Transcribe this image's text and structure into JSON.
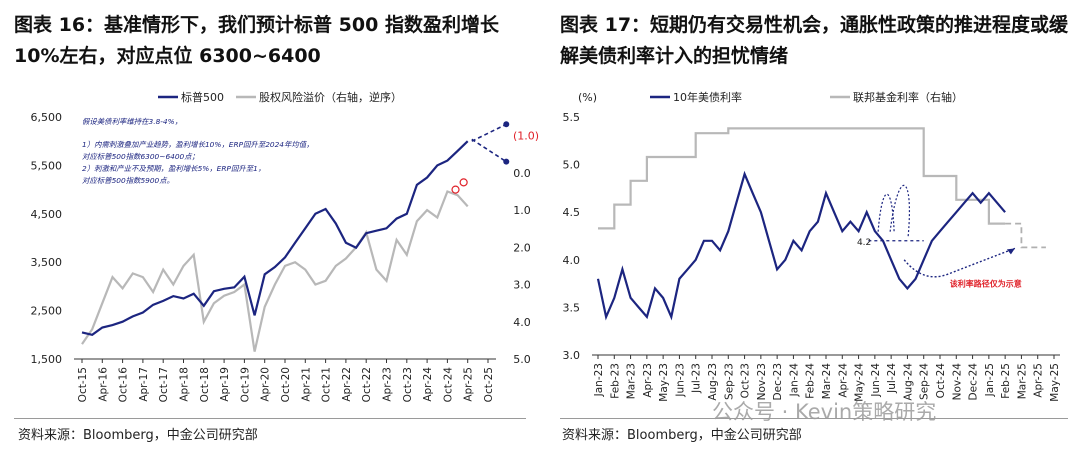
{
  "figures": [
    {
      "title": "图表 16：基准情形下，我们预计标普 500 指数盈利增长 10%左右，对应点位 6300~6400",
      "source": "资料来源：Bloomberg，中金公司研究部"
    },
    {
      "title": "图表 17：短期仍有交易性机会，通胀性政策的推进程度或缓解美债利率计入的担忧情绪",
      "source": "资料来源：Bloomberg，中金公司研究部"
    }
  ],
  "watermark": "公众号 · Kevin策略研究",
  "colors": {
    "navy": "#1c2580",
    "gray": "#b8b8b8",
    "red": "#e0222a",
    "dashgray": "#b0b0b0"
  },
  "chart_data": [
    {
      "type": "line",
      "title": "",
      "legend": [
        "标普500",
        "股权风险溢价（右轴，逆序）"
      ],
      "legend_placement": "top",
      "x_ticks": [
        "Oct-15",
        "Apr-16",
        "Oct-16",
        "Apr-17",
        "Oct-17",
        "Apr-18",
        "Oct-18",
        "Apr-19",
        "Oct-19",
        "Apr-20",
        "Oct-20",
        "Apr-21",
        "Oct-21",
        "Apr-22",
        "Oct-22",
        "Apr-23",
        "Oct-23",
        "Apr-24",
        "Oct-24",
        "Apr-25",
        "Oct-25"
      ],
      "y_left_ticks": [
        "6,500",
        "5,500",
        "4,500",
        "3,500",
        "2,500",
        "1,500"
      ],
      "y_left_range": [
        1500,
        6500
      ],
      "y_right_ticks": [
        "0.0",
        "1.0",
        "2.0",
        "3.0",
        "4.0",
        "5.0"
      ],
      "y_right_range": [
        -1.5,
        5.0
      ],
      "y_right_reversed": true,
      "annotation": "假设美债利率维持在3.8-4%，\n1）内需刺激叠加产业趋势，盈利增长10%，ERP回升至2024年均值，\n对应标普500指数6300~6400点；\n2）刺激和产业不及预期，盈利增长5%，ERP回升至1，\n对应标普500指数5900点。",
      "right_axis_label_top": "(1.0)",
      "series": [
        {
          "name": "标普500",
          "axis": "left",
          "x": [
            0,
            0.5,
            1,
            1.5,
            2,
            2.5,
            3,
            3.5,
            4,
            4.5,
            5,
            5.5,
            6,
            6.5,
            7,
            7.5,
            8,
            8.5,
            9,
            9.5,
            10,
            10.5,
            11,
            11.5,
            12,
            12.5,
            13,
            13.5,
            14,
            14.5,
            15,
            15.5,
            16,
            16.5,
            17,
            17.5,
            18,
            18.5,
            19
          ],
          "values": [
            2050,
            2000,
            2150,
            2200,
            2270,
            2380,
            2460,
            2620,
            2700,
            2800,
            2750,
            2850,
            2600,
            2900,
            2950,
            2980,
            3200,
            2400,
            3250,
            3400,
            3600,
            3900,
            4200,
            4500,
            4600,
            4300,
            3900,
            3800,
            4100,
            4150,
            4200,
            4400,
            4500,
            5100,
            5250,
            5500,
            5600,
            5800,
            6000
          ]
        },
        {
          "name": "股权风险溢价（右轴，逆序）",
          "axis": "right",
          "x": [
            0,
            0.5,
            1,
            1.5,
            2,
            2.5,
            3,
            3.5,
            4,
            4.5,
            5,
            5.5,
            6,
            6.5,
            7,
            7.5,
            8,
            8.5,
            9,
            9.5,
            10,
            10.5,
            11,
            11.5,
            12,
            12.5,
            13,
            13.5,
            14,
            14.5,
            15,
            15.5,
            16,
            16.5,
            17,
            17.5,
            18,
            18.5,
            19
          ],
          "values": [
            4.6,
            4.2,
            3.5,
            2.8,
            3.1,
            2.7,
            2.8,
            3.2,
            2.6,
            3.0,
            2.5,
            2.2,
            4.0,
            3.5,
            3.3,
            3.2,
            3.0,
            4.8,
            3.6,
            3.0,
            2.5,
            2.4,
            2.6,
            3.0,
            2.9,
            2.5,
            2.3,
            2.0,
            1.6,
            2.6,
            2.9,
            1.8,
            2.2,
            1.3,
            1.0,
            1.2,
            0.5,
            0.6,
            0.9
          ]
        }
      ],
      "projections": [
        {
          "name": "base",
          "x": [
            19.2,
            20.9
          ],
          "values": [
            6000,
            6350
          ]
        },
        {
          "name": "erp",
          "x": [
            19.2,
            20.9
          ],
          "values_right": [
            -0.9,
            -0.3
          ]
        }
      ],
      "markers": [
        {
          "x": 18.4,
          "value_left": 5000
        },
        {
          "x": 18.8,
          "value_left": 5150
        }
      ]
    },
    {
      "type": "line",
      "title": "",
      "unit_label": "(%)",
      "legend": [
        "10年美债利率",
        "联邦基金利率（右轴）"
      ],
      "legend_placement": "top",
      "x_ticks": [
        "Jan-23",
        "Feb-23",
        "Mar-23",
        "Apr-23",
        "May-23",
        "Jun-23",
        "Jul-23",
        "Aug-23",
        "Sep-23",
        "Oct-23",
        "Nov-23",
        "Dec-23",
        "Jan-24",
        "Feb-24",
        "Mar-24",
        "Apr-24",
        "May-24",
        "Jun-24",
        "Jul-24",
        "Aug-24",
        "Sep-24",
        "Oct-24",
        "Nov-24",
        "Dec-24",
        "Jan-25",
        "Feb-25",
        "Mar-25",
        "Apr-25",
        "May-25"
      ],
      "y_ticks": [
        "5.5",
        "5.0",
        "4.5",
        "4.0",
        "3.5",
        "3.0"
      ],
      "y_range": [
        3.0,
        5.5
      ],
      "series": [
        {
          "name": "10年美债利率",
          "x": [
            0,
            0.5,
            1,
            1.5,
            2,
            2.5,
            3,
            3.5,
            4,
            4.5,
            5,
            5.5,
            6,
            6.5,
            7,
            7.5,
            8,
            8.5,
            9,
            9.5,
            10,
            10.5,
            11,
            11.5,
            12,
            12.5,
            13,
            13.5,
            14,
            14.5,
            15,
            15.5,
            16,
            16.5,
            17,
            17.5,
            18,
            18.5,
            19,
            19.5,
            20,
            20.5,
            21,
            21.5,
            22,
            22.5,
            23,
            23.5,
            24,
            24.5,
            25
          ],
          "values": [
            3.8,
            3.4,
            3.6,
            3.9,
            3.6,
            3.5,
            3.4,
            3.7,
            3.6,
            3.4,
            3.8,
            3.9,
            4.0,
            4.2,
            4.2,
            4.1,
            4.3,
            4.6,
            4.9,
            4.7,
            4.5,
            4.2,
            3.9,
            4.0,
            4.2,
            4.1,
            4.3,
            4.4,
            4.7,
            4.5,
            4.3,
            4.4,
            4.3,
            4.5,
            4.3,
            4.2,
            4.0,
            3.8,
            3.7,
            3.8,
            4.0,
            4.2,
            4.3,
            4.4,
            4.5,
            4.6,
            4.7,
            4.6,
            4.7,
            4.6,
            4.5
          ]
        },
        {
          "name": "联邦基金利率（右轴）",
          "x": [
            0,
            1,
            1,
            2,
            2,
            3,
            3,
            4.5,
            4.5,
            6,
            6,
            7,
            7,
            8,
            8,
            20,
            20,
            22,
            22,
            24,
            24,
            25
          ],
          "values": [
            4.33,
            4.33,
            4.58,
            4.58,
            4.83,
            4.83,
            5.08,
            5.08,
            5.08,
            5.08,
            5.33,
            5.33,
            5.33,
            5.33,
            5.38,
            5.38,
            4.88,
            4.88,
            4.63,
            4.63,
            4.38,
            4.38
          ]
        }
      ],
      "projections": [
        {
          "name": "ffr",
          "x": [
            25,
            26,
            26,
            27.5
          ],
          "values": [
            4.38,
            4.38,
            4.13,
            4.13
          ]
        }
      ],
      "annotations": [
        {
          "text": "4.2",
          "x": 17.3,
          "value": 4.2
        },
        {
          "text": "该利率路径仅为示意",
          "x": 23,
          "value": 3.9
        }
      ]
    }
  ]
}
